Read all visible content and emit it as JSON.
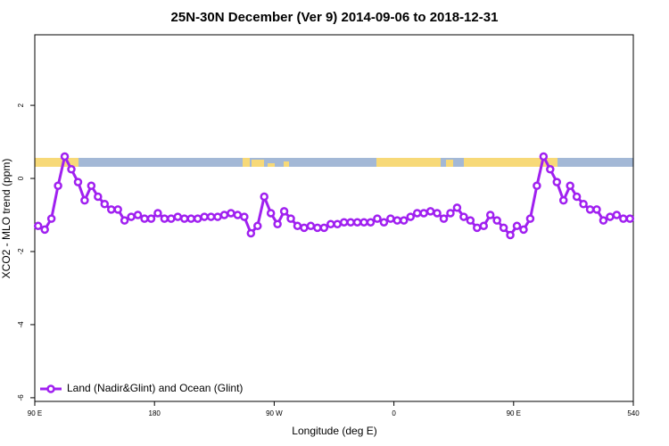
{
  "chart_data": {
    "type": "line",
    "title": "25N-30N December (Ver 9)   2014-09-06 to 2018-12-31",
    "xlabel": "Longitude (deg E)",
    "ylabel": "XCO2 - MLO trend (ppm)",
    "xlim": [
      90,
      540
    ],
    "ylim": [
      -6.1,
      3.93
    ],
    "xticks": [
      {
        "value": 90,
        "label": "90 E"
      },
      180,
      {
        "value": 270,
        "label": "90 W"
      },
      {
        "value": 360,
        "label": "0"
      },
      {
        "value": 450,
        "label": "90 E"
      },
      540
    ],
    "yticks": [
      -6,
      -4,
      -2,
      0,
      2
    ],
    "legend": "bottom-left",
    "x": [
      92.5,
      97.5,
      102.5,
      107.5,
      112.5,
      117.5,
      122.5,
      127.5,
      132.5,
      137.5,
      142.5,
      147.5,
      152.5,
      157.5,
      162.5,
      167.5,
      172.5,
      177.5,
      182.5,
      187.5,
      192.5,
      197.5,
      202.5,
      207.5,
      212.5,
      217.5,
      222.5,
      227.5,
      232.5,
      237.5,
      242.5,
      247.5,
      252.5,
      257.5,
      262.5,
      267.5,
      272.5,
      277.5,
      282.5,
      287.5,
      292.5,
      297.5,
      302.5,
      307.5,
      312.5,
      317.5,
      322.5,
      327.5,
      332.5,
      337.5,
      342.5,
      347.5,
      352.5,
      357.5,
      362.5,
      367.5,
      372.5,
      377.5,
      382.5,
      387.5,
      392.5,
      397.5,
      402.5,
      407.5,
      412.5,
      417.5,
      422.5,
      427.5,
      432.5,
      437.5,
      442.5,
      447.5,
      452.5,
      457.5,
      462.5,
      467.5,
      472.5,
      477.5,
      482.5,
      487.5,
      492.5,
      497.5,
      502.5,
      507.5,
      512.5,
      517.5,
      522.5,
      527.5,
      532.5,
      537.5
    ],
    "series": [
      {
        "name": "Land (Nadir&Glint) and Ocean (Glint)",
        "color": "#a020f0",
        "values": [
          -1.3,
          -1.4,
          -1.1,
          -0.2,
          0.6,
          0.25,
          -0.1,
          -0.6,
          -0.2,
          -0.5,
          -0.7,
          -0.85,
          -0.85,
          -1.15,
          -1.05,
          -1.0,
          -1.1,
          -1.1,
          -0.95,
          -1.1,
          -1.1,
          -1.05,
          -1.1,
          -1.1,
          -1.1,
          -1.05,
          -1.05,
          -1.05,
          -1.0,
          -0.95,
          -1.0,
          -1.05,
          -1.5,
          -1.3,
          -0.5,
          -0.95,
          -1.25,
          -0.9,
          -1.1,
          -1.3,
          -1.35,
          -1.3,
          -1.35,
          -1.35,
          -1.25,
          -1.25,
          -1.2,
          -1.2,
          -1.2,
          -1.2,
          -1.2,
          -1.1,
          -1.2,
          -1.1,
          -1.15,
          -1.15,
          -1.05,
          -0.95,
          -0.95,
          -0.9,
          -0.95,
          -1.1,
          -0.95,
          -0.8,
          -1.05,
          -1.15,
          -1.35,
          -1.3,
          -1.0,
          -1.15,
          -1.35,
          -1.55,
          -1.3,
          -1.4,
          -1.1,
          -0.2,
          0.6,
          0.25,
          -0.1,
          -0.6,
          -0.2,
          -0.5,
          -0.7,
          -0.85,
          -0.85,
          -1.15,
          -1.05,
          -1.0,
          -1.1,
          -1.1
        ]
      }
    ]
  }
}
